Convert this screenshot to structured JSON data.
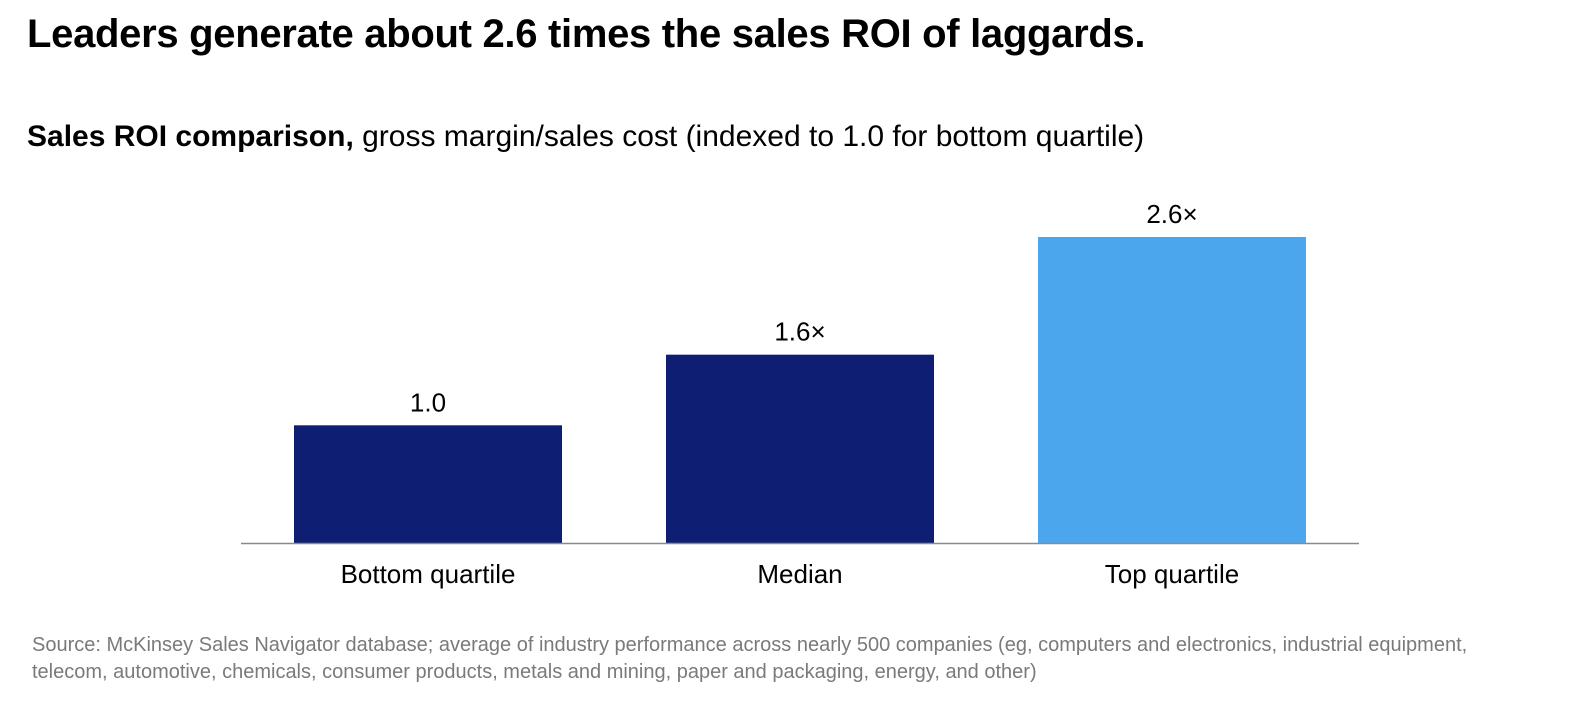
{
  "headline": "Leaders generate about 2.6 times the sales ROI of laggards.",
  "subtitle": {
    "bold": "Sales ROI comparison,",
    "normal": " gross margin/sales cost (indexed to 1.0 for bottom quartile)"
  },
  "source": "Source: McKinsey Sales Navigator database; average of industry performance across nearly 500 companies (eg, computers and electronics, industrial equipment, telecom, automotive, chemicals, consumer products, metals and mining, paper and packaging, energy, and other)",
  "colors": {
    "dark_bar": "#0e1e72",
    "highlight_bar": "#4ba6ee",
    "axis": "#8a8a8a"
  },
  "chart_data": {
    "type": "bar",
    "title": "Sales ROI comparison",
    "subtitle": "gross margin/sales cost (indexed to 1.0 for bottom quartile)",
    "xlabel": "",
    "ylabel": "",
    "categories": [
      "Bottom quartile",
      "Median",
      "Top quartile"
    ],
    "values": [
      1.0,
      1.6,
      2.6
    ],
    "value_labels": [
      "1.0",
      "1.6×",
      "2.6×"
    ],
    "ylim": [
      0,
      3.0
    ],
    "grid": false,
    "bar_colors": [
      "#0e1e72",
      "#0e1e72",
      "#4ba6ee"
    ]
  }
}
